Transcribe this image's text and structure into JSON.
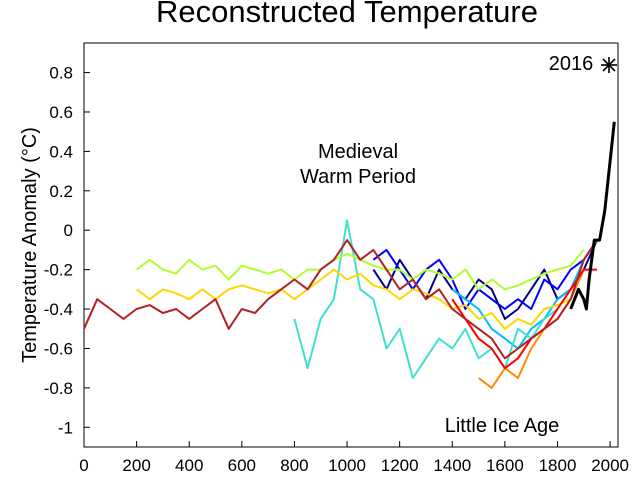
{
  "chart_data": {
    "type": "line",
    "title": "Reconstructed Temperature",
    "xlabel": "",
    "ylabel": "Temperature Anomaly (°C)",
    "xlim": [
      0,
      2030
    ],
    "ylim": [
      -1.1,
      0.95
    ],
    "xticks": [
      0,
      200,
      400,
      600,
      800,
      1000,
      1200,
      1400,
      1600,
      1800,
      2000
    ],
    "yticks": [
      -1,
      -0.8,
      -0.6,
      -0.4,
      -0.2,
      0,
      0.2,
      0.4,
      0.6,
      0.8
    ],
    "grid": false,
    "annotations": [
      {
        "text": "Medieval",
        "x": 1000,
        "y": 0.36
      },
      {
        "text": "Warm Period",
        "x": 1000,
        "y": 0.24
      },
      {
        "text": "Little Ice Age",
        "x": 1600,
        "y": -1.0
      },
      {
        "text": "2016",
        "x": 1830,
        "y": 0.8
      }
    ],
    "marker_2016": {
      "x": 2016,
      "y": 0.79
    },
    "series": [
      {
        "color": "#00008b",
        "x": [
          1100,
          1150,
          1200,
          1250,
          1300,
          1350,
          1400,
          1450,
          1500,
          1550,
          1600,
          1650,
          1700,
          1750,
          1800,
          1850,
          1900,
          1950
        ],
        "values": [
          -0.2,
          -0.3,
          -0.15,
          -0.25,
          -0.35,
          -0.2,
          -0.3,
          -0.35,
          -0.25,
          -0.3,
          -0.45,
          -0.4,
          -0.3,
          -0.2,
          -0.35,
          -0.3,
          -0.2,
          -0.05
        ]
      },
      {
        "color": "#0000ff",
        "x": [
          1100,
          1150,
          1200,
          1250,
          1300,
          1350,
          1400,
          1450,
          1500,
          1550,
          1600,
          1650,
          1700,
          1750,
          1800,
          1850,
          1900,
          1950
        ],
        "values": [
          -0.15,
          -0.1,
          -0.2,
          -0.3,
          -0.2,
          -0.15,
          -0.25,
          -0.4,
          -0.3,
          -0.35,
          -0.4,
          -0.35,
          -0.4,
          -0.25,
          -0.3,
          -0.2,
          -0.15,
          -0.05
        ]
      },
      {
        "color": "#00bfff",
        "x": [
          1400,
          1450,
          1500,
          1550,
          1600,
          1650,
          1700,
          1750,
          1800,
          1850,
          1900
        ],
        "values": [
          -0.3,
          -0.35,
          -0.4,
          -0.5,
          -0.55,
          -0.6,
          -0.5,
          -0.45,
          -0.35,
          -0.3,
          -0.15
        ]
      },
      {
        "color": "#40e0d0",
        "x": [
          800,
          850,
          900,
          950,
          1000,
          1050,
          1100,
          1150,
          1200,
          1250,
          1300,
          1350,
          1400,
          1450,
          1500,
          1550,
          1600,
          1650,
          1700,
          1750,
          1800
        ],
        "values": [
          -0.45,
          -0.7,
          -0.45,
          -0.35,
          0.05,
          -0.3,
          -0.35,
          -0.6,
          -0.5,
          -0.75,
          -0.65,
          -0.55,
          -0.6,
          -0.5,
          -0.65,
          -0.6,
          -0.7,
          -0.5,
          -0.55,
          -0.45,
          -0.4
        ]
      },
      {
        "color": "#adff2f",
        "x": [
          200,
          250,
          300,
          350,
          400,
          450,
          500,
          550,
          600,
          650,
          700,
          750,
          800,
          850,
          900,
          950,
          1000,
          1050,
          1100,
          1150,
          1200,
          1250,
          1300,
          1350,
          1400,
          1450,
          1500,
          1550,
          1600,
          1650,
          1700,
          1750,
          1800,
          1850,
          1900
        ],
        "values": [
          -0.2,
          -0.15,
          -0.2,
          -0.22,
          -0.15,
          -0.2,
          -0.18,
          -0.25,
          -0.18,
          -0.2,
          -0.22,
          -0.2,
          -0.25,
          -0.2,
          -0.2,
          -0.15,
          -0.12,
          -0.15,
          -0.18,
          -0.2,
          -0.2,
          -0.25,
          -0.2,
          -0.22,
          -0.25,
          -0.2,
          -0.3,
          -0.25,
          -0.3,
          -0.28,
          -0.25,
          -0.22,
          -0.2,
          -0.18,
          -0.1
        ]
      },
      {
        "color": "#ffd700",
        "x": [
          200,
          250,
          300,
          350,
          400,
          450,
          500,
          550,
          600,
          650,
          700,
          750,
          800,
          850,
          900,
          950,
          1000,
          1050,
          1100,
          1150,
          1200,
          1250,
          1300,
          1350,
          1400,
          1450,
          1500,
          1550,
          1600,
          1650,
          1700,
          1750,
          1800,
          1850,
          1900
        ],
        "values": [
          -0.3,
          -0.35,
          -0.3,
          -0.32,
          -0.35,
          -0.3,
          -0.35,
          -0.3,
          -0.28,
          -0.3,
          -0.32,
          -0.3,
          -0.35,
          -0.3,
          -0.25,
          -0.2,
          -0.25,
          -0.22,
          -0.28,
          -0.3,
          -0.35,
          -0.3,
          -0.32,
          -0.35,
          -0.4,
          -0.38,
          -0.45,
          -0.42,
          -0.5,
          -0.45,
          -0.48,
          -0.4,
          -0.38,
          -0.35,
          -0.2
        ]
      },
      {
        "color": "#ff8c00",
        "x": [
          1500,
          1550,
          1600,
          1650,
          1700,
          1750,
          1800,
          1850,
          1900
        ],
        "values": [
          -0.75,
          -0.8,
          -0.7,
          -0.75,
          -0.6,
          -0.5,
          -0.45,
          -0.35,
          -0.2
        ]
      },
      {
        "color": "#ff0000",
        "x": [
          1400,
          1450,
          1500,
          1550,
          1600,
          1650,
          1700,
          1750,
          1800,
          1850,
          1900,
          1950
        ],
        "values": [
          -0.35,
          -0.45,
          -0.55,
          -0.6,
          -0.7,
          -0.65,
          -0.55,
          -0.5,
          -0.4,
          -0.3,
          -0.2,
          -0.2
        ]
      },
      {
        "color": "#b22222",
        "x": [
          0,
          50,
          100,
          150,
          200,
          250,
          300,
          350,
          400,
          450,
          500,
          550,
          600,
          650,
          700,
          750,
          800,
          850,
          900,
          950,
          1000,
          1050,
          1100,
          1150,
          1200,
          1250,
          1300,
          1350,
          1400,
          1450,
          1500,
          1550,
          1600,
          1650,
          1700,
          1750,
          1800,
          1850,
          1900,
          1950
        ],
        "values": [
          -0.5,
          -0.35,
          -0.4,
          -0.45,
          -0.4,
          -0.38,
          -0.42,
          -0.4,
          -0.45,
          -0.4,
          -0.35,
          -0.5,
          -0.4,
          -0.42,
          -0.35,
          -0.3,
          -0.25,
          -0.3,
          -0.2,
          -0.15,
          -0.05,
          -0.15,
          -0.1,
          -0.2,
          -0.3,
          -0.25,
          -0.35,
          -0.3,
          -0.4,
          -0.45,
          -0.5,
          -0.55,
          -0.65,
          -0.6,
          -0.55,
          -0.5,
          -0.45,
          -0.35,
          -0.15,
          -0.05
        ]
      },
      {
        "color": "#000000",
        "x": [
          1850,
          1880,
          1900,
          1910,
          1920,
          1940,
          1960,
          1980,
          2000,
          2016
        ],
        "values": [
          -0.4,
          -0.3,
          -0.35,
          -0.4,
          -0.25,
          -0.05,
          -0.05,
          0.1,
          0.35,
          0.55
        ]
      }
    ]
  }
}
